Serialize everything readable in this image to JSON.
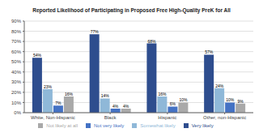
{
  "chart_data": {
    "type": "bar",
    "title": "Reported Likelihood of Participating in Proposed Free High-Quality PreK for All",
    "categories": [
      "White, Non-Hispanic",
      "Black",
      "Hispanic",
      "Other, non-Hispanic"
    ],
    "series": [
      {
        "name": "Very likely",
        "color": "#2E4D8E",
        "values": [
          54,
          77,
          68,
          57
        ],
        "value_labels": [
          "54%",
          "77%",
          "68%",
          "57%"
        ]
      },
      {
        "name": "Somewhat likely",
        "color": "#8FB8D8",
        "values": [
          23,
          14,
          16,
          24
        ],
        "value_labels": [
          "23%",
          "14%",
          "16%",
          "24%"
        ]
      },
      {
        "name": "Not very likely",
        "color": "#4472C4",
        "values": [
          7,
          4,
          6,
          10
        ],
        "value_labels": [
          "7%",
          "4%",
          "6%",
          "10%"
        ]
      },
      {
        "name": "Not likely at all",
        "color": "#A9A9A9",
        "values": [
          16,
          4,
          10,
          9
        ],
        "value_labels": [
          "16%",
          "4%",
          "10%",
          "9%"
        ]
      }
    ],
    "ylim": [
      0,
      90
    ],
    "yticks": [
      {
        "value": 0,
        "label": "0%"
      },
      {
        "value": 10,
        "label": "10%"
      },
      {
        "value": 20,
        "label": "20%"
      },
      {
        "value": 30,
        "label": "30%"
      },
      {
        "value": 40,
        "label": "40%"
      },
      {
        "value": 50,
        "label": "50%"
      },
      {
        "value": 60,
        "label": "60%"
      },
      {
        "value": 70,
        "label": "70%"
      },
      {
        "value": 80,
        "label": "80%"
      },
      {
        "value": 90,
        "label": "90%"
      }
    ],
    "grid": true,
    "legend": "bottom",
    "data_labels": true
  }
}
